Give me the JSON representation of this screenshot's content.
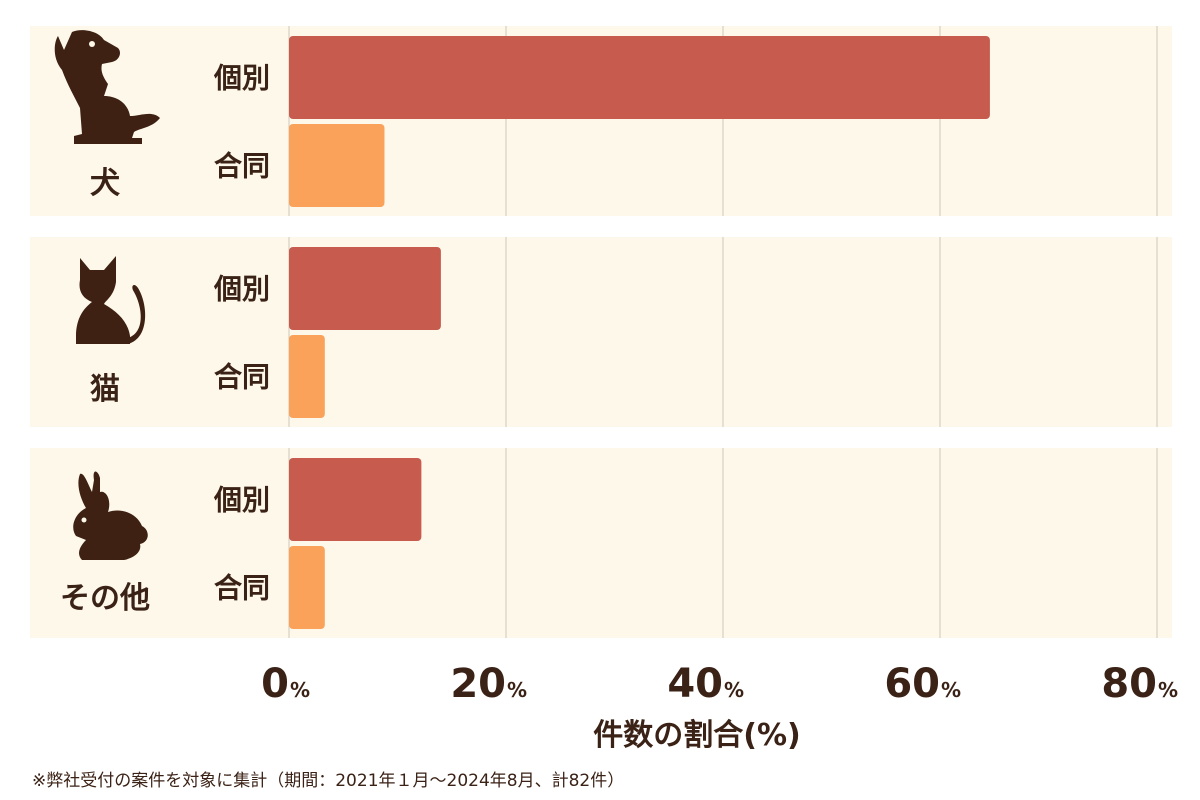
{
  "chart_data": {
    "type": "bar",
    "orientation": "horizontal",
    "categories": [
      "犬",
      "猫",
      "その他"
    ],
    "category_icons": [
      "dog-icon",
      "cat-icon",
      "rabbit-icon"
    ],
    "series": [
      {
        "name": "個別",
        "values": [
          64.6,
          14.0,
          12.2
        ],
        "color": "#c65b4e"
      },
      {
        "name": "合同",
        "values": [
          8.8,
          3.3,
          3.3
        ],
        "color": "#fba25a"
      }
    ],
    "xlim": [
      0,
      80
    ],
    "xticks": [
      "0",
      "20",
      "40",
      "60",
      "80"
    ],
    "tick_unit": "%",
    "xlabel": "件数の割合(%)",
    "grid": true
  },
  "footnote": "※弊社受付の案件を対象に集計（期間：2021年１月〜2024年8月、計82件）",
  "colors": {
    "group_background": "#fdf8ea",
    "text": "#3b2216",
    "grid": "#cfc8bc"
  }
}
